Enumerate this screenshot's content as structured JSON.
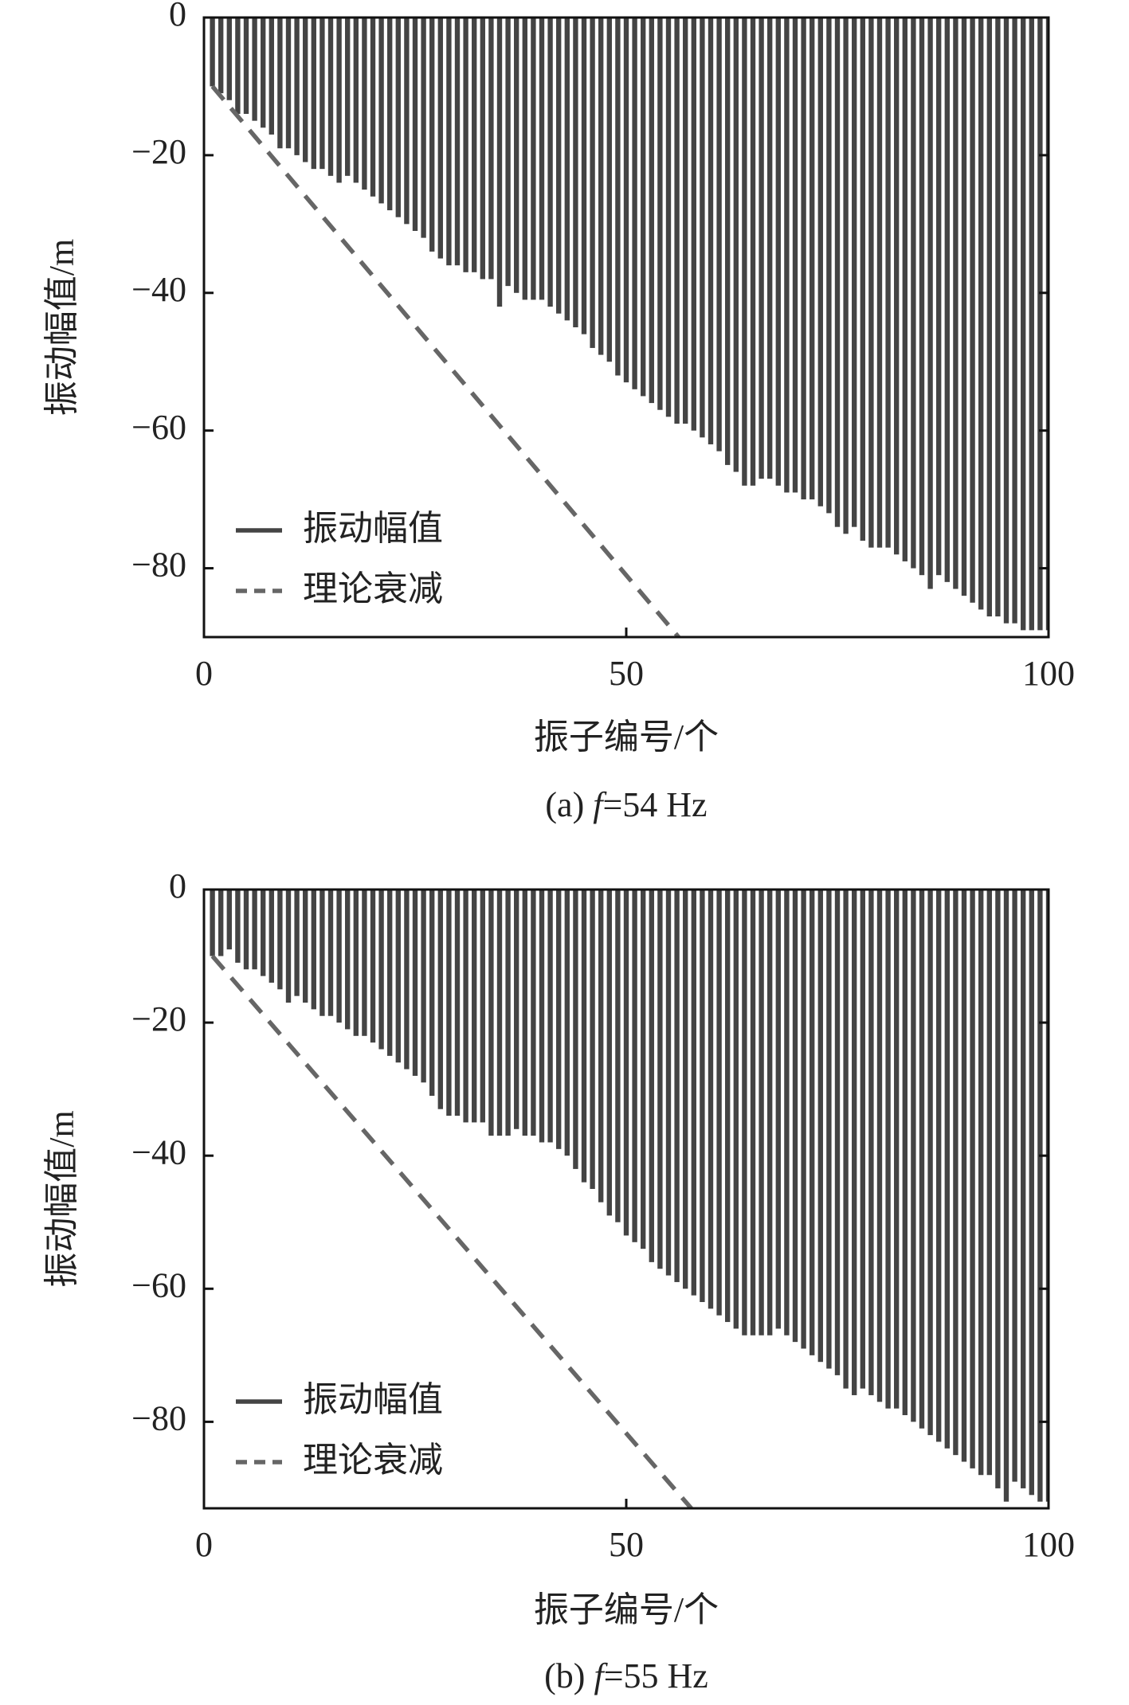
{
  "chart_data": [
    {
      "type": "bar",
      "ylabel": "振动幅值/m",
      "xlabel": "振子编号/个",
      "caption": [
        "(a) ",
        "f",
        "=54 Hz"
      ],
      "xlim": [
        0,
        100
      ],
      "xticks": [
        0,
        50,
        100
      ],
      "ylim": [
        -90,
        0
      ],
      "yticks": [
        0,
        {
          "value": -20,
          "label": "−20"
        },
        {
          "value": -40,
          "label": "−40"
        },
        {
          "value": -60,
          "label": "−60"
        },
        {
          "value": -80,
          "label": "−80"
        }
      ],
      "legend": "lower left",
      "series": [
        {
          "name": "振动幅值",
          "color": "#444444",
          "style": "bar",
          "x": [
            1,
            2,
            3,
            4,
            5,
            6,
            7,
            8,
            9,
            10,
            11,
            12,
            13,
            14,
            15,
            16,
            17,
            18,
            19,
            20,
            21,
            22,
            23,
            24,
            25,
            26,
            27,
            28,
            29,
            30,
            31,
            32,
            33,
            34,
            35,
            36,
            37,
            38,
            39,
            40,
            41,
            42,
            43,
            44,
            45,
            46,
            47,
            48,
            49,
            50,
            51,
            52,
            53,
            54,
            55,
            56,
            57,
            58,
            59,
            60,
            61,
            62,
            63,
            64,
            65,
            66,
            67,
            68,
            69,
            70,
            71,
            72,
            73,
            74,
            75,
            76,
            77,
            78,
            79,
            80,
            81,
            82,
            83,
            84,
            85,
            86,
            87,
            88,
            89,
            90,
            91,
            92,
            93,
            94,
            95,
            96,
            97,
            98,
            99,
            100
          ],
          "values": [
            -10,
            -11,
            -12,
            -14,
            -14,
            -15,
            -16,
            -17,
            -19,
            -19,
            -20,
            -21,
            -22,
            -22,
            -23,
            -24,
            -23,
            -24,
            -25,
            -26,
            -27,
            -28,
            -29,
            -30,
            -31,
            -32,
            -34,
            -35,
            -36,
            -36,
            -37,
            -37,
            -38,
            -38,
            -42,
            -39,
            -40,
            -41,
            -41,
            -41,
            -42,
            -43,
            -44,
            -45,
            -46,
            -48,
            -49,
            -50,
            -52,
            -53,
            -54,
            -55,
            -56,
            -57,
            -58,
            -59,
            -59,
            -60,
            -61,
            -62,
            -63,
            -65,
            -66,
            -68,
            -68,
            -67,
            -67,
            -68,
            -69,
            -69,
            -70,
            -70,
            -71,
            -72,
            -74,
            -75,
            -74,
            -76,
            -77,
            -77,
            -77,
            -78,
            -79,
            -80,
            -81,
            -83,
            -81,
            -82,
            -83,
            -84,
            -85,
            -86,
            -87,
            -87,
            -88,
            -88,
            -89,
            -89,
            -89,
            -89
          ]
        },
        {
          "name": "理论衰减",
          "color": "#666666",
          "style": "dashed",
          "x": [
            1,
            56.2
          ],
          "values": [
            -10,
            -90
          ]
        }
      ]
    },
    {
      "type": "bar",
      "ylabel": "振动幅值/m",
      "xlabel": "振子编号/个",
      "caption": [
        "(b) ",
        "f",
        "=55 Hz"
      ],
      "xlim": [
        0,
        100
      ],
      "xticks": [
        0,
        50,
        100
      ],
      "ylim": [
        -93,
        0
      ],
      "yticks": [
        0,
        {
          "value": -20,
          "label": "−20"
        },
        {
          "value": -40,
          "label": "−40"
        },
        {
          "value": -60,
          "label": "−60"
        },
        {
          "value": -80,
          "label": "−80"
        }
      ],
      "legend": "lower left",
      "series": [
        {
          "name": "振动幅值",
          "color": "#444444",
          "style": "bar",
          "x": [
            1,
            2,
            3,
            4,
            5,
            6,
            7,
            8,
            9,
            10,
            11,
            12,
            13,
            14,
            15,
            16,
            17,
            18,
            19,
            20,
            21,
            22,
            23,
            24,
            25,
            26,
            27,
            28,
            29,
            30,
            31,
            32,
            33,
            34,
            35,
            36,
            37,
            38,
            39,
            40,
            41,
            42,
            43,
            44,
            45,
            46,
            47,
            48,
            49,
            50,
            51,
            52,
            53,
            54,
            55,
            56,
            57,
            58,
            59,
            60,
            61,
            62,
            63,
            64,
            65,
            66,
            67,
            68,
            69,
            70,
            71,
            72,
            73,
            74,
            75,
            76,
            77,
            78,
            79,
            80,
            81,
            82,
            83,
            84,
            85,
            86,
            87,
            88,
            89,
            90,
            91,
            92,
            93,
            94,
            95,
            96,
            97,
            98,
            99,
            100
          ],
          "values": [
            -10,
            -10,
            -9,
            -11,
            -12,
            -12,
            -13,
            -14,
            -15,
            -17,
            -16,
            -17,
            -18,
            -19,
            -19,
            -20,
            -21,
            -22,
            -22,
            -23,
            -24,
            -25,
            -26,
            -27,
            -28,
            -29,
            -31,
            -33,
            -34,
            -34,
            -35,
            -35,
            -35,
            -37,
            -37,
            -37,
            -36,
            -37,
            -37,
            -38,
            -38,
            -39,
            -40,
            -42,
            -44,
            -45,
            -47,
            -49,
            -50,
            -52,
            -53,
            -54,
            -56,
            -57,
            -58,
            -59,
            -60,
            -61,
            -62,
            -63,
            -64,
            -65,
            -66,
            -67,
            -67,
            -67,
            -67,
            -66,
            -67,
            -68,
            -69,
            -70,
            -71,
            -72,
            -73,
            -75,
            -76,
            -75,
            -76,
            -77,
            -78,
            -78,
            -79,
            -80,
            -81,
            -82,
            -83,
            -84,
            -85,
            -86,
            -87,
            -88,
            -88,
            -90,
            -92,
            -89,
            -90,
            -91,
            -92,
            -92
          ]
        },
        {
          "name": "理论衰减",
          "color": "#666666",
          "style": "dashed",
          "x": [
            1,
            57.7
          ],
          "values": [
            -10,
            -93
          ]
        }
      ]
    }
  ]
}
